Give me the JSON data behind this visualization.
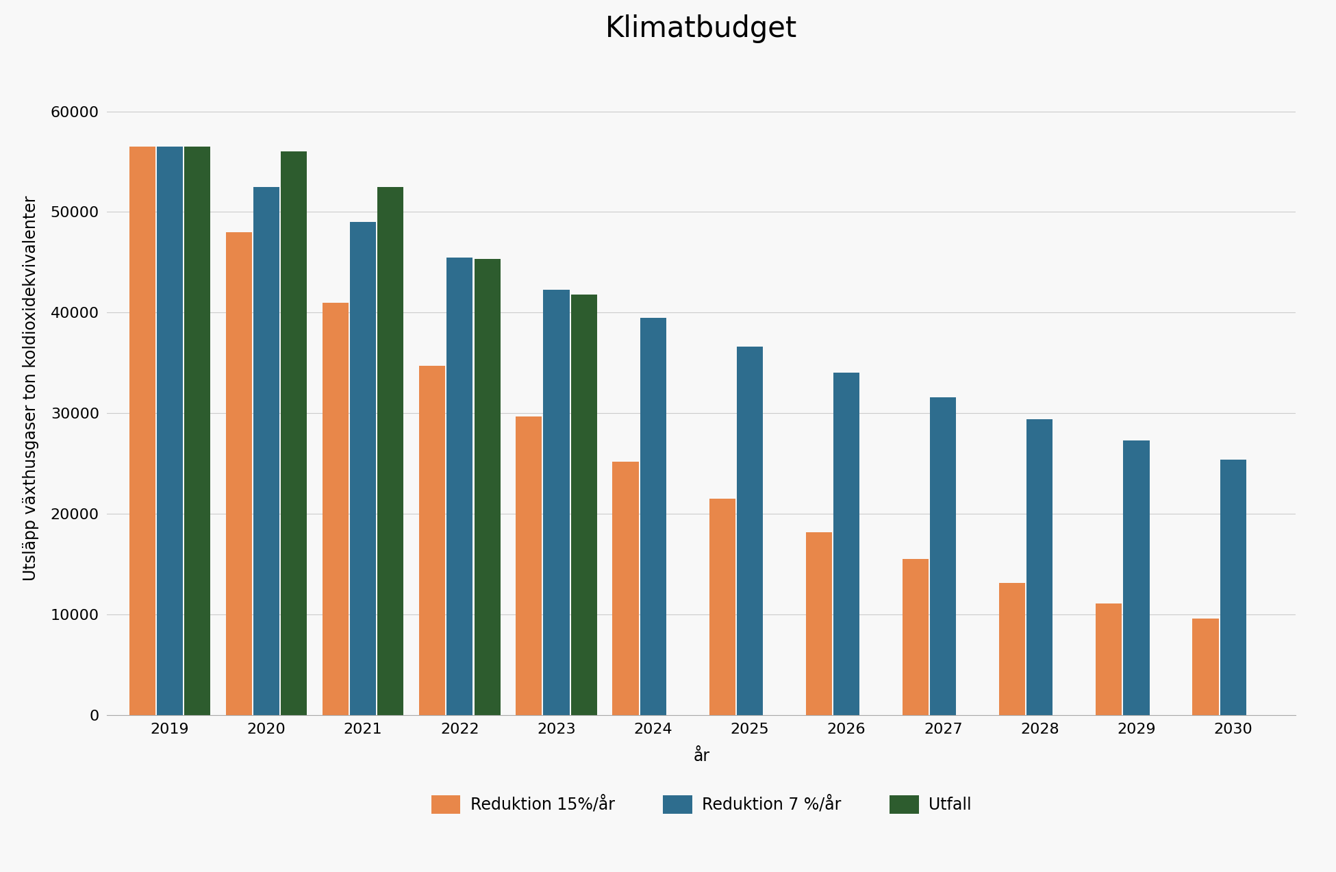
{
  "title": "Klimatbudget",
  "xlabel": "år",
  "ylabel": "Utsläpp växthusgaser ton koldioxidekvivalenter",
  "years": [
    2019,
    2020,
    2021,
    2022,
    2023,
    2024,
    2025,
    2026,
    2027,
    2028,
    2029,
    2030
  ],
  "reduktion_15": [
    56500,
    48000,
    41000,
    34700,
    29700,
    25200,
    21500,
    18200,
    15500,
    13100,
    11100,
    9600
  ],
  "reduktion_7": [
    56500,
    52500,
    49000,
    45500,
    42300,
    39500,
    36600,
    34000,
    31600,
    29400,
    27300,
    25400
  ],
  "utfall": [
    56500,
    56000,
    52500,
    45300,
    41800,
    null,
    null,
    null,
    null,
    null,
    null,
    null
  ],
  "color_15": "#E8874A",
  "color_7": "#2E6D8E",
  "color_utfall": "#2D5C2E",
  "legend_15": "Reduktion 15%/år",
  "legend_7": "Reduktion 7 %/år",
  "legend_utfall": "Utfall",
  "ylim": [
    0,
    65000
  ],
  "yticks": [
    0,
    10000,
    20000,
    30000,
    40000,
    50000,
    60000
  ],
  "background_color": "#f8f8f8",
  "grid_color": "#cccccc",
  "title_fontsize": 30,
  "axis_label_fontsize": 17,
  "tick_fontsize": 16,
  "legend_fontsize": 17
}
